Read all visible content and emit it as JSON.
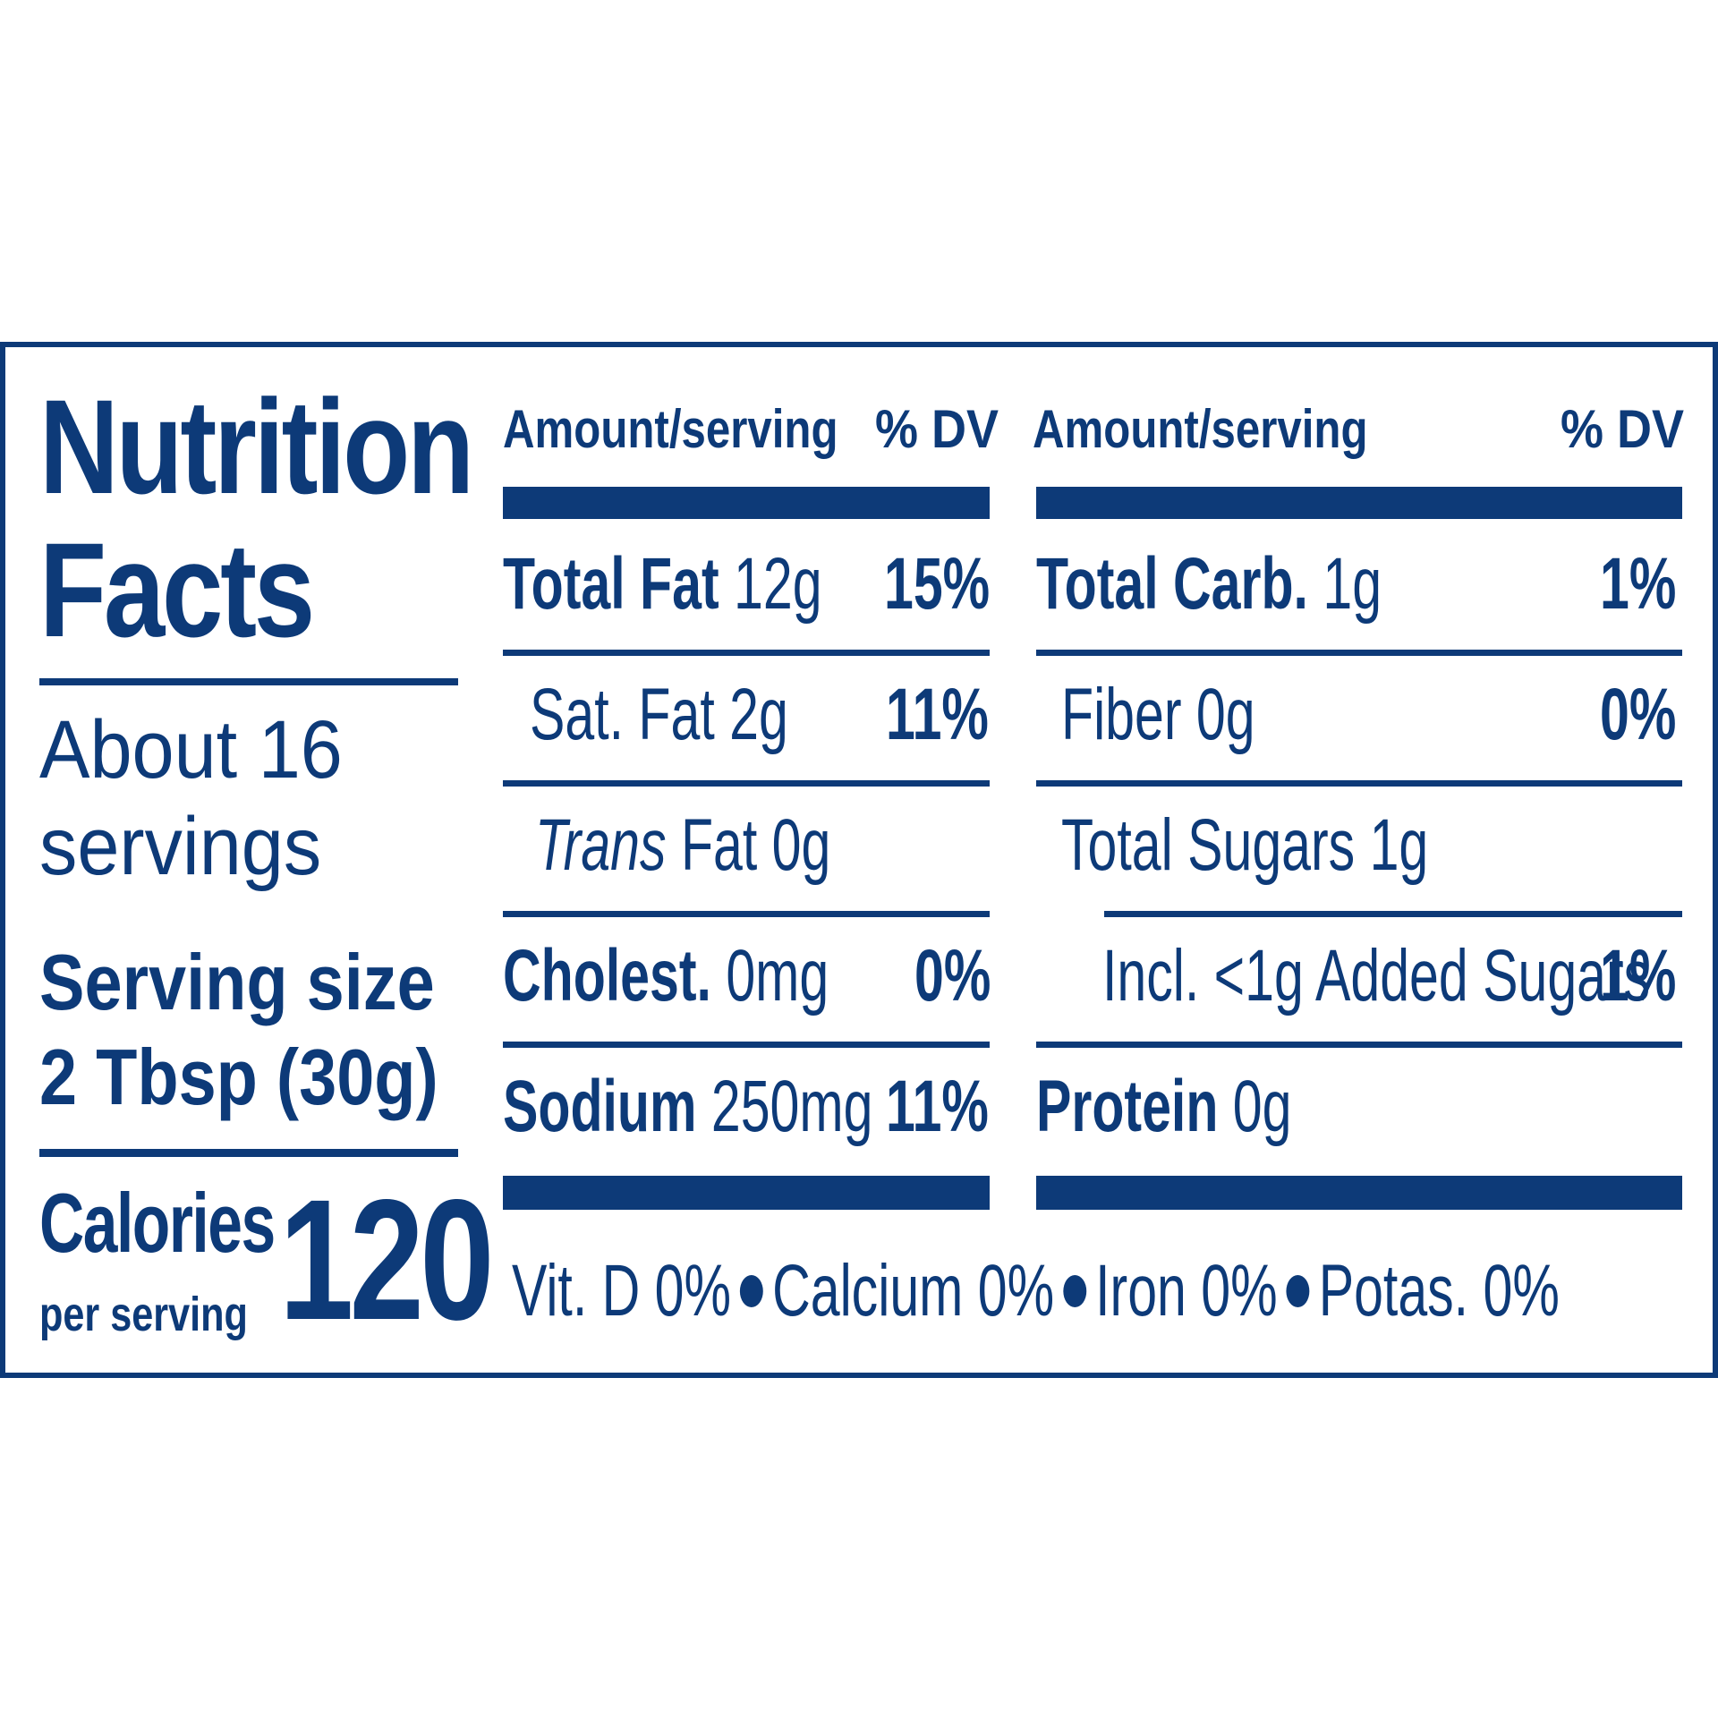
{
  "title": {
    "line1": "Nutrition",
    "line2": "Facts"
  },
  "servings": {
    "line1": "About 16",
    "line2": "servings"
  },
  "serving_size": {
    "label": "Serving size",
    "value": "2 Tbsp (30g)"
  },
  "calories": {
    "label": "Calories",
    "sublabel": "per serving",
    "value": "120"
  },
  "header": {
    "amount": "Amount/serving",
    "dv": "% DV"
  },
  "left": {
    "total_fat": {
      "label": "Total Fat",
      "amount": "12g",
      "dv": "15%"
    },
    "sat_fat": {
      "label": "Sat. Fat 2g",
      "dv": "11%"
    },
    "trans_fat": {
      "label_italic": "Trans",
      "label_rest": " Fat 0g"
    },
    "cholest": {
      "label": "Cholest.",
      "amount": "0mg",
      "dv": "0%"
    },
    "sodium": {
      "label": "Sodium",
      "amount": "250mg",
      "dv": "11%"
    }
  },
  "right": {
    "total_carb": {
      "label": "Total Carb.",
      "amount": "1g",
      "dv": "1%"
    },
    "fiber": {
      "label": "Fiber 0g",
      "dv": "0%"
    },
    "total_sugars": {
      "label": "Total Sugars 1g"
    },
    "added_sugars": {
      "label": "Incl. <1g Added Sugars",
      "dv": "1%"
    },
    "protein": {
      "label": "Protein",
      "amount": "0g"
    }
  },
  "footer": {
    "vit_d": "Vit. D 0%",
    "calcium": "Calcium 0%",
    "iron": "Iron 0%",
    "potas": "Potas. 0%"
  },
  "colors": {
    "ink": "#0d3a78",
    "background": "#ffffff"
  }
}
